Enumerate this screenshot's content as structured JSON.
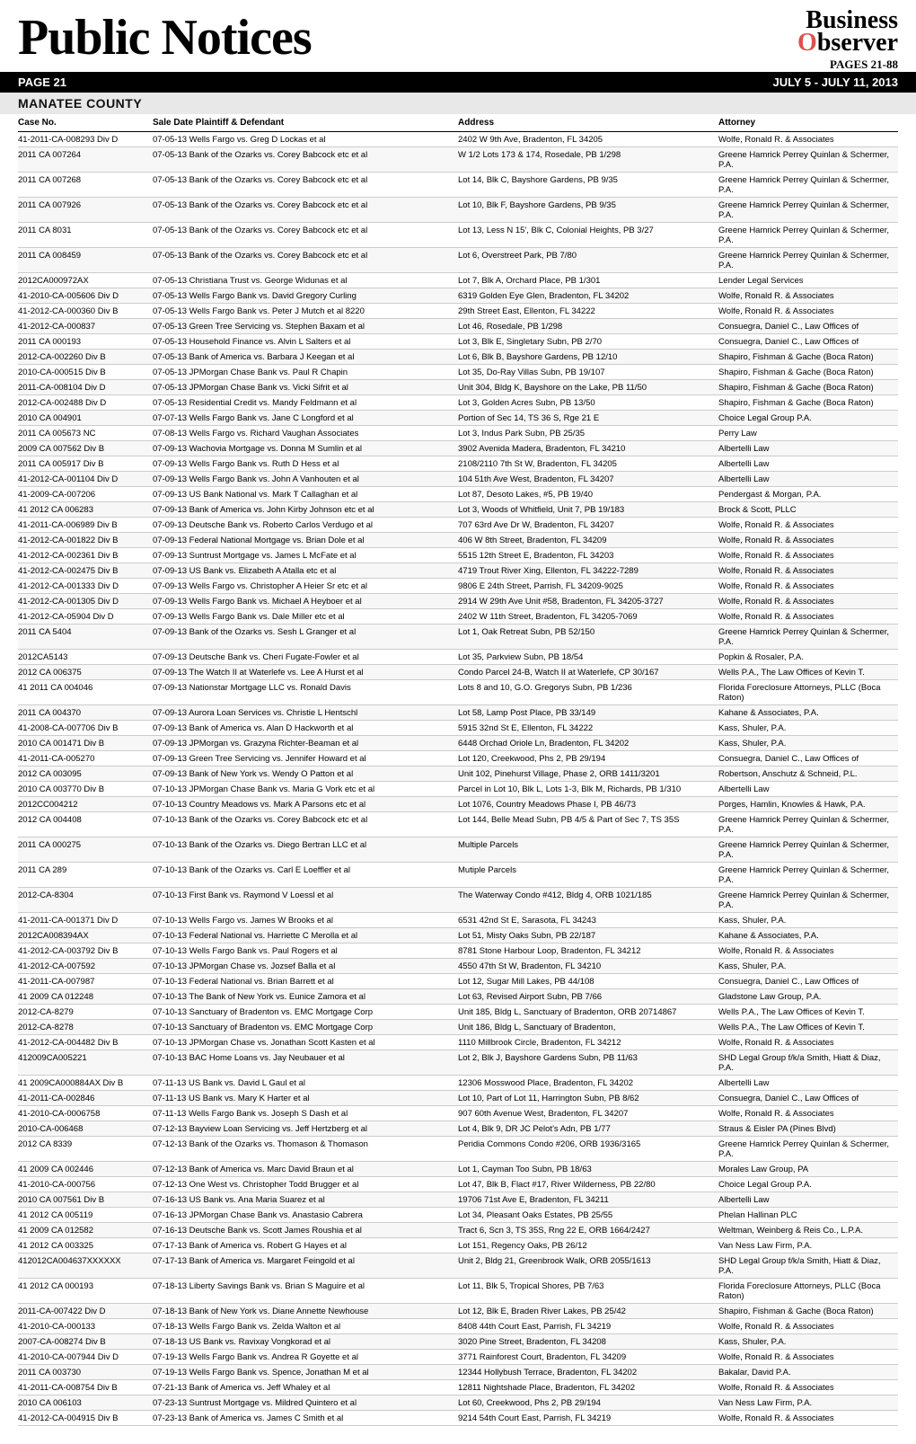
{
  "masthead": {
    "title": "Public Notices",
    "logo_line1": "Business",
    "logo_line2_letter": "O",
    "logo_line2_rest": "bserver",
    "pages_range": "PAGES 21-88"
  },
  "bar": {
    "page_label": "PAGE 21",
    "date_range": "JULY 5 - JULY 11, 2013"
  },
  "county_header": "MANATEE COUNTY",
  "table": {
    "columns": [
      "Case No.",
      "Sale Date Plaintiff & Defendant",
      "Address",
      "Attorney"
    ],
    "rows": [
      [
        "41-2011-CA-008293 Div D",
        "07-05-13 Wells Fargo vs. Greg D Lockas et al",
        "2402 W 9th Ave, Bradenton, FL 34205",
        "Wolfe, Ronald R. & Associates"
      ],
      [
        "2011 CA 007264",
        "07-05-13 Bank of the Ozarks vs. Corey Babcock etc et al",
        "W 1/2 Lots 173 & 174, Rosedale, PB 1/298",
        "Greene Hamrick Perrey Quinlan & Schermer, P.A."
      ],
      [
        "2011 CA 007268",
        "07-05-13 Bank of the Ozarks vs. Corey Babcock etc et al",
        "Lot 14, Blk C, Bayshore Gardens, PB 9/35",
        "Greene Hamrick Perrey Quinlan & Schermer, P.A."
      ],
      [
        "2011 CA 007926",
        "07-05-13 Bank of the Ozarks vs. Corey Babcock etc et al",
        "Lot 10, Blk F, Bayshore Gardens, PB 9/35",
        "Greene Hamrick Perrey Quinlan & Schermer, P.A."
      ],
      [
        "2011 CA 8031",
        "07-05-13 Bank of the Ozarks vs. Corey Babcock etc et al",
        "Lot 13, Less N 15', Blk C, Colonial Heights, PB 3/27",
        "Greene Hamrick Perrey Quinlan & Schermer, P.A."
      ],
      [
        "2011 CA 008459",
        "07-05-13 Bank of the Ozarks vs. Corey Babcock etc et al",
        "Lot 6, Overstreet Park, PB 7/80",
        "Greene Hamrick Perrey Quinlan & Schermer, P.A."
      ],
      [
        "2012CA000972AX",
        "07-05-13 Christiana Trust vs. George Widunas et al",
        "Lot 7, Blk A, Orchard Place, PB 1/301",
        "Lender Legal Services"
      ],
      [
        "41-2010-CA-005606 Div D",
        "07-05-13 Wells Fargo Bank vs. David Gregory Curling",
        "6319 Golden Eye Glen, Bradenton, FL 34202",
        "Wolfe, Ronald R. & Associates"
      ],
      [
        "41-2012-CA-000360 Div B",
        "07-05-13 Wells Fargo Bank vs. Peter J Mutch et al 8220",
        "29th Street East, Ellenton, FL 34222",
        "Wolfe, Ronald R. & Associates"
      ],
      [
        "41-2012-CA-000837",
        "07-05-13 Green Tree Servicing vs. Stephen Baxam et al",
        "Lot 46, Rosedale, PB 1/298",
        "Consuegra, Daniel C., Law Offices of"
      ],
      [
        "2011 CA 000193",
        "07-05-13 Household Finance vs. Alvin L Salters et al",
        "Lot 3, Blk E, Singletary Subn, PB 2/70",
        "Consuegra, Daniel C., Law Offices of"
      ],
      [
        "2012-CA-002260 Div B",
        "07-05-13 Bank of America vs. Barbara J Keegan et al",
        "Lot 6, Blk B, Bayshore Gardens, PB 12/10",
        "Shapiro, Fishman & Gache (Boca Raton)"
      ],
      [
        "2010-CA-000515 Div B",
        "07-05-13 JPMorgan Chase Bank vs. Paul R Chapin",
        "Lot 35, Do-Ray Villas Subn, PB 19/107",
        "Shapiro, Fishman & Gache (Boca Raton)"
      ],
      [
        "2011-CA-008104 Div D",
        "07-05-13 JPMorgan Chase Bank vs. Vicki Sifrit et al",
        "Unit 304, Bldg K, Bayshore on the Lake, PB 11/50",
        "Shapiro, Fishman & Gache (Boca Raton)"
      ],
      [
        "2012-CA-002488 Div D",
        "07-05-13 Residential Credit vs. Mandy Feldmann et al",
        "Lot 3, Golden Acres Subn, PB 13/50",
        "Shapiro, Fishman & Gache (Boca Raton)"
      ],
      [
        "2010 CA 004901",
        "07-07-13 Wells Fargo Bank vs. Jane C Longford et al",
        "Portion of Sec 14, TS 36 S, Rge 21 E",
        "Choice Legal Group P.A."
      ],
      [
        "2011 CA 005673 NC",
        "07-08-13 Wells Fargo vs. Richard Vaughan Associates",
        "Lot 3, Indus Park Subn, PB 25/35",
        "Perry Law"
      ],
      [
        "2009 CA 007562 Div B",
        "07-09-13 Wachovia Mortgage vs. Donna M Sumlin et al",
        "3902 Avenida Madera, Bradenton, FL 34210",
        "Albertelli Law"
      ],
      [
        "2011 CA 005917 Div B",
        "07-09-13 Wells Fargo Bank vs. Ruth D Hess et al",
        "2108/2110 7th St W, Bradenton, FL 34205",
        "Albertelli Law"
      ],
      [
        "41-2012-CA-001104 Div D",
        "07-09-13 Wells Fargo Bank vs. John A Vanhouten et al",
        "104 51th Ave West, Bradenton, FL 34207",
        "Albertelli Law"
      ],
      [
        "41-2009-CA-007206",
        "07-09-13 US Bank National vs. Mark T Callaghan et al",
        "Lot 87, Desoto Lakes, #5, PB 19/40",
        "Pendergast & Morgan, P.A."
      ],
      [
        "41 2012 CA 006283",
        "07-09-13 Bank of America vs. John Kirby Johnson etc et al",
        "Lot 3, Woods of Whitfield, Unit 7, PB 19/183",
        "Brock & Scott, PLLC"
      ],
      [
        "41-2011-CA-006989 Div B",
        "07-09-13 Deutsche Bank vs. Roberto Carlos Verdugo et al",
        "707 63rd Ave Dr W, Bradenton, FL 34207",
        "Wolfe, Ronald R. & Associates"
      ],
      [
        "41-2012-CA-001822 Div B",
        "07-09-13 Federal National Mortgage vs. Brian Dole et al",
        "406 W 8th Street, Bradenton, FL 34209",
        "Wolfe, Ronald R. & Associates"
      ],
      [
        "41-2012-CA-002361 Div B",
        "07-09-13 Suntrust Mortgage vs. James L McFate et al",
        "5515 12th Street E, Bradenton, FL 34203",
        "Wolfe, Ronald R. & Associates"
      ],
      [
        "41-2012-CA-002475 Div B",
        "07-09-13 US Bank vs. Elizabeth A Atalla etc et al",
        "4719 Trout River Xing, Ellenton, FL 34222-7289",
        "Wolfe, Ronald R. & Associates"
      ],
      [
        "41-2012-CA-001333 Div D",
        "07-09-13 Wells Fargo vs. Christopher A Heier Sr etc et al",
        "9806 E 24th Street, Parrish, FL 34209-9025",
        "Wolfe, Ronald R. & Associates"
      ],
      [
        "41-2012-CA-001305 Div D",
        "07-09-13 Wells Fargo Bank vs. Michael A Heyboer et al",
        "2914 W 29th Ave Unit #58, Bradenton, FL 34205-3727",
        "Wolfe, Ronald R. & Associates"
      ],
      [
        "41-2012-CA-05904 Div D",
        "07-09-13 Wells Fargo Bank vs. Dale Miller etc et al",
        "2402 W 11th Street, Bradenton, FL 34205-7069",
        "Wolfe, Ronald R. & Associates"
      ],
      [
        "2011 CA 5404",
        "07-09-13 Bank of the Ozarks vs. Sesh L Granger et al",
        "Lot 1, Oak Retreat Subn, PB 52/150",
        "Greene Hamrick Perrey Quinlan & Schermer, P.A."
      ],
      [
        "2012CA5143",
        "07-09-13 Deutsche Bank vs. Cheri Fugate-Fowler et al",
        "Lot 35, Parkview Subn, PB 18/54",
        "Popkin & Rosaler, P.A."
      ],
      [
        "2012 CA 006375",
        "07-09-13 The Watch II at Waterlefe vs. Lee A Hurst et al",
        "Condo Parcel 24-B, Watch II at Waterlefe, CP 30/167",
        "Wells P.A., The Law Offices of Kevin T."
      ],
      [
        "41 2011 CA 004046",
        "07-09-13 Nationstar Mortgage LLC vs. Ronald Davis",
        "Lots 8 and 10, G.O. Gregorys Subn, PB 1/236",
        "Florida Foreclosure Attorneys, PLLC (Boca Raton)"
      ],
      [
        "2011 CA 004370",
        "07-09-13 Aurora Loan Services vs. Christie L Hentschl",
        "Lot 58, Lamp Post Place, PB 33/149",
        "Kahane & Associates, P.A."
      ],
      [
        "41-2008-CA-007706 Div B",
        "07-09-13 Bank of America vs. Alan D Hackworth et al",
        "5915 32nd St E, Ellenton, FL 34222",
        "Kass, Shuler, P.A."
      ],
      [
        "2010 CA 001471 Div B",
        "07-09-13 JPMorgan vs. Grazyna Richter-Beaman et al",
        "6448 Orchad Oriole Ln, Bradenton, FL 34202",
        "Kass, Shuler, P.A."
      ],
      [
        "41-2011-CA-005270",
        "07-09-13 Green Tree Servicing vs. Jennifer Howard et al",
        "Lot 120, Creekwood, Phs 2, PB 29/194",
        "Consuegra, Daniel C., Law Offices of"
      ],
      [
        "2012 CA 003095",
        "07-09-13 Bank of New York vs. Wendy O Patton et al",
        "Unit 102, Pinehurst Village, Phase 2, ORB 1411/3201",
        "Robertson, Anschutz & Schneid, P.L."
      ],
      [
        "2010 CA 003770 Div B",
        "07-10-13 JPMorgan Chase Bank vs. Maria G Vork etc et al",
        "Parcel in Lot 10, Blk L, Lots 1-3, Blk M, Richards, PB 1/310",
        "Albertelli Law"
      ],
      [
        "2012CC004212",
        "07-10-13 Country Meadows vs. Mark A Parsons etc et al",
        "Lot 1076, Country Meadows Phase I, PB 46/73",
        "Porges, Hamlin, Knowles & Hawk, P.A."
      ],
      [
        "2012 CA 004408",
        "07-10-13 Bank of the Ozarks vs. Corey Babcock etc et al",
        "Lot 144, Belle Mead Subn, PB 4/5 & Part of Sec 7, TS 35S",
        "Greene Hamrick Perrey Quinlan & Schermer, P.A."
      ],
      [
        "2011 CA 000275",
        "07-10-13 Bank of the Ozarks vs. Diego Bertran LLC et al",
        "Multiple Parcels",
        "Greene Hamrick Perrey Quinlan & Schermer, P.A."
      ],
      [
        "2011 CA 289",
        "07-10-13 Bank of the Ozarks vs. Carl E Loeffler et al",
        "Mutiple Parcels",
        "Greene Hamrick Perrey Quinlan & Schermer, P.A."
      ],
      [
        "2012-CA-8304",
        "07-10-13 First Bank vs. Raymond V Loessl et al",
        "The Waterway Condo #412, Bldg 4, ORB 1021/185",
        "Greene Hamrick Perrey Quinlan & Schermer, P.A."
      ],
      [
        "41-2011-CA-001371 Div D",
        "07-10-13 Wells Fargo vs. James W Brooks et al",
        "6531 42nd St E, Sarasota, FL 34243",
        "Kass, Shuler, P.A."
      ],
      [
        "2012CA008394AX",
        "07-10-13 Federal National vs. Harriette C Merolla et al",
        "Lot 51, Misty Oaks Subn, PB 22/187",
        "Kahane & Associates, P.A."
      ],
      [
        "41-2012-CA-003792 Div B",
        "07-10-13 Wells Fargo Bank vs. Paul Rogers et al",
        "8781 Stone Harbour Loop, Bradenton, FL 34212",
        "Wolfe, Ronald R. & Associates"
      ],
      [
        "41-2012-CA-007592",
        "07-10-13 JPMorgan Chase vs. Jozsef Balla et al",
        "4550 47th St W, Bradenton, FL 34210",
        "Kass, Shuler, P.A."
      ],
      [
        "41-2011-CA-007987",
        "07-10-13 Federal National vs. Brian Barrett et al",
        "Lot 12, Sugar Mill Lakes, PB 44/108",
        "Consuegra, Daniel C., Law Offices of"
      ],
      [
        "41 2009 CA 012248",
        "07-10-13 The Bank of New York vs. Eunice Zamora et al",
        "Lot 63, Revised Airport Subn, PB 7/66",
        "Gladstone Law Group, P.A."
      ],
      [
        "2012-CA-8279",
        "07-10-13 Sanctuary of Bradenton vs. EMC Mortgage Corp",
        "Unit 185, Bldg L, Sanctuary of Bradenton, ORB 20714867",
        "Wells P.A., The Law Offices of Kevin T."
      ],
      [
        "2012-CA-8278",
        "07-10-13 Sanctuary of Bradenton vs. EMC Mortgage Corp",
        "Unit 186, Bldg L, Sanctuary of Bradenton,",
        "Wells P.A., The Law Offices of Kevin T."
      ],
      [
        "41-2012-CA-004482 Div B",
        "07-10-13 JPMorgan Chase vs. Jonathan Scott Kasten et al",
        "1110 Millbrook Circle, Bradenton, FL 34212",
        "Wolfe, Ronald R. & Associates"
      ],
      [
        "412009CA005221",
        "07-10-13 BAC Home Loans vs. Jay Neubauer et al",
        "Lot 2, Blk J, Bayshore Gardens Subn, PB 11/63",
        "SHD Legal Group f/k/a Smith, Hiatt & Diaz, P.A."
      ],
      [
        "41 2009CA000884AX Div B",
        "07-11-13 US Bank vs. David L Gaul et al",
        "12306 Mosswood Place, Bradenton, FL 34202",
        "Albertelli Law"
      ],
      [
        "41-2011-CA-002846",
        "07-11-13 US Bank vs. Mary K Harter et al",
        "Lot 10, Part of Lot 11, Harrington Subn, PB 8/62",
        "Consuegra, Daniel C., Law Offices of"
      ],
      [
        "41-2010-CA-0006758",
        "07-11-13 Wells Fargo Bank vs. Joseph S Dash et al",
        "907 60th Avenue West, Bradenton, FL 34207",
        "Wolfe, Ronald R. & Associates"
      ],
      [
        "2010-CA-006468",
        "07-12-13 Bayview Loan Servicing vs. Jeff Hertzberg et al",
        "Lot 4, Blk 9, DR JC Pelot's Adn, PB 1/77",
        "Straus & Eisler PA (Pines Blvd)"
      ],
      [
        "2012 CA 8339",
        "07-12-13 Bank of the Ozarks vs. Thomason & Thomason",
        "Peridia Commons Condo #206, ORB 1936/3165",
        "Greene Hamrick Perrey Quinlan & Schermer, P.A."
      ],
      [
        "41 2009 CA 002446",
        "07-12-13 Bank of America vs. Marc David Braun et al",
        "Lot 1, Cayman Too Subn, PB 18/63",
        "Morales Law Group, PA"
      ],
      [
        "41-2010-CA-000756",
        "07-12-13 One West vs. Christopher Todd Brugger et al",
        "Lot 47, Blk B, Flact #17, River Wilderness, PB 22/80",
        "Choice Legal Group P.A."
      ],
      [
        "2010 CA 007561 Div B",
        "07-16-13 US Bank vs. Ana Maria Suarez et al",
        "19706 71st Ave E, Bradenton, FL 34211",
        "Albertelli Law"
      ],
      [
        "41 2012 CA 005119",
        "07-16-13 JPMorgan Chase Bank vs. Anastasio Cabrera",
        "Lot 34, Pleasant Oaks Estates, PB 25/55",
        "Phelan Hallinan PLC"
      ],
      [
        "41 2009 CA 012582",
        "07-16-13 Deutsche Bank vs. Scott James Roushia et al",
        "Tract 6, Scn 3, TS 35S, Rng 22 E, ORB 1664/2427",
        "Weltman, Weinberg & Reis Co., L.P.A."
      ],
      [
        "41 2012 CA 003325",
        "07-17-13 Bank of America vs. Robert G Hayes et al",
        "Lot 151, Regency Oaks, PB 26/12",
        "Van Ness Law Firm, P.A."
      ],
      [
        "412012CA004637XXXXXX",
        "07-17-13 Bank of America vs. Margaret Feingold et al",
        "Unit 2, Bldg 21, Greenbrook Walk, ORB 2055/1613",
        "SHD Legal Group f/k/a Smith, Hiatt & Diaz, P.A."
      ],
      [
        "41 2012 CA 000193",
        "07-18-13 Liberty Savings Bank vs. Brian S Maguire et al",
        "Lot 11, Blk 5, Tropical Shores, PB 7/63",
        "Florida Foreclosure Attorneys, PLLC (Boca Raton)"
      ],
      [
        "2011-CA-007422 Div D",
        "07-18-13 Bank of New York vs. Diane Annette Newhouse",
        "Lot 12, Blk E, Braden River Lakes, PB 25/42",
        "Shapiro, Fishman & Gache (Boca Raton)"
      ],
      [
        "41-2010-CA-000133",
        "07-18-13 Wells Fargo Bank vs. Zelda Walton et al",
        "8408 44th Court East, Parrish, FL 34219",
        "Wolfe, Ronald R. & Associates"
      ],
      [
        "2007-CA-008274 Div B",
        "07-18-13 US Bank vs. Ravixay Vongkorad et al",
        "3020 Pine Street, Bradenton, FL 34208",
        "Kass, Shuler, P.A."
      ],
      [
        "41-2010-CA-007944 Div D",
        "07-19-13 Wells Fargo Bank vs. Andrea R Goyette et al",
        "3771 Rainforest Court, Bradenton, FL 34209",
        "Wolfe, Ronald R. & Associates"
      ],
      [
        "2011 CA 003730",
        "07-19-13 Wells Fargo Bank vs. Spence, Jonathan M et al",
        "12344 Hollybush Terrace, Bradenton, FL 34202",
        "Bakalar, David P.A."
      ],
      [
        "41-2011-CA-008754 Div B",
        "07-21-13 Bank of America vs. Jeff Whaley et al",
        "12811 Nightshade Place, Bradenton, FL 34202",
        "Wolfe, Ronald R. & Associates"
      ],
      [
        "2010 CA 006103",
        "07-23-13 Suntrust Mortgage vs. Mildred Quintero et al",
        "Lot 60, Creekwood, Phs 2, PB 29/194",
        "Van Ness Law Firm, P.A."
      ],
      [
        "41-2012-CA-004915 Div B",
        "07-23-13 Bank of America vs. James C Smith et al",
        "9214 54th Court East, Parrish, FL 34219",
        "Wolfe, Ronald R. & Associates"
      ]
    ]
  }
}
